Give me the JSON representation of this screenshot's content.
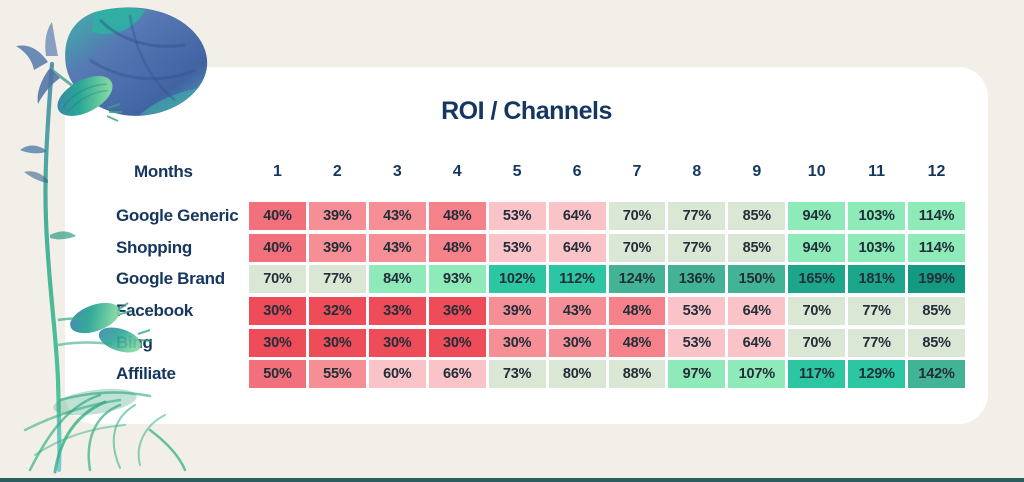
{
  "title": "ROI / Channels",
  "colors": {
    "background": "#f2efe8",
    "card": "#ffffff",
    "heading_navy": "#14365f",
    "cell_text": "#222e38",
    "bottom_bar": "#2b5d60",
    "scale_strong_red": "#ee4c58",
    "scale_salmon": "#f2707b",
    "scale_light_salmon": "#f68e96",
    "scale_mid_salmon": "#f5828b",
    "scale_light_pink": "#f9c3c8",
    "scale_sage_green": "#d9e7d4",
    "scale_mint_green": "#8eeab9",
    "scale_bright_teal": "#2cc6a2",
    "scale_mid_teal": "#43b395",
    "scale_dark_teal": "#1da78a",
    "scale_darkest_teal": "#149a80"
  },
  "chart_data": {
    "type": "heatmap",
    "title": "ROI / Channels",
    "row_header": "Months",
    "columns": [
      "1",
      "2",
      "3",
      "4",
      "5",
      "6",
      "7",
      "8",
      "9",
      "10",
      "11",
      "12"
    ],
    "rows": [
      {
        "label": "Google Generic",
        "values": [
          40,
          39,
          43,
          48,
          53,
          64,
          70,
          77,
          85,
          94,
          103,
          114
        ],
        "cells": [
          {
            "text": "40%",
            "bg": "#f2707b"
          },
          {
            "text": "39%",
            "bg": "#f68e96"
          },
          {
            "text": "43%",
            "bg": "#f68e96"
          },
          {
            "text": "48%",
            "bg": "#f5828b"
          },
          {
            "text": "53%",
            "bg": "#f9c3c8"
          },
          {
            "text": "64%",
            "bg": "#f9c3c8"
          },
          {
            "text": "70%",
            "bg": "#d9e7d4"
          },
          {
            "text": "77%",
            "bg": "#d9e7d4"
          },
          {
            "text": "85%",
            "bg": "#d9e7d4"
          },
          {
            "text": "94%",
            "bg": "#8eeab9"
          },
          {
            "text": "103%",
            "bg": "#8eeab9"
          },
          {
            "text": "114%",
            "bg": "#8eeab9"
          }
        ]
      },
      {
        "label": "Shopping",
        "values": [
          40,
          39,
          43,
          48,
          53,
          64,
          70,
          77,
          85,
          94,
          103,
          114
        ],
        "cells": [
          {
            "text": "40%",
            "bg": "#f2707b"
          },
          {
            "text": "39%",
            "bg": "#f68e96"
          },
          {
            "text": "43%",
            "bg": "#f68e96"
          },
          {
            "text": "48%",
            "bg": "#f5828b"
          },
          {
            "text": "53%",
            "bg": "#f9c3c8"
          },
          {
            "text": "64%",
            "bg": "#f9c3c8"
          },
          {
            "text": "70%",
            "bg": "#d9e7d4"
          },
          {
            "text": "77%",
            "bg": "#d9e7d4"
          },
          {
            "text": "85%",
            "bg": "#d9e7d4"
          },
          {
            "text": "94%",
            "bg": "#8eeab9"
          },
          {
            "text": "103%",
            "bg": "#8eeab9"
          },
          {
            "text": "114%",
            "bg": "#8eeab9"
          }
        ]
      },
      {
        "label": "Google Brand",
        "values": [
          70,
          77,
          84,
          93,
          102,
          112,
          124,
          136,
          150,
          165,
          181,
          199
        ],
        "cells": [
          {
            "text": "70%",
            "bg": "#d9e7d4"
          },
          {
            "text": "77%",
            "bg": "#d9e7d4"
          },
          {
            "text": "84%",
            "bg": "#8eeab9"
          },
          {
            "text": "93%",
            "bg": "#8eeab9"
          },
          {
            "text": "102%",
            "bg": "#2cc6a2"
          },
          {
            "text": "112%",
            "bg": "#2cc6a2"
          },
          {
            "text": "124%",
            "bg": "#43b395"
          },
          {
            "text": "136%",
            "bg": "#43b395"
          },
          {
            "text": "150%",
            "bg": "#43b395"
          },
          {
            "text": "165%",
            "bg": "#1da78a"
          },
          {
            "text": "181%",
            "bg": "#1da78a"
          },
          {
            "text": "199%",
            "bg": "#149a80"
          }
        ]
      },
      {
        "label": "Facebook",
        "values": [
          30,
          32,
          33,
          36,
          39,
          43,
          48,
          53,
          64,
          70,
          77,
          85
        ],
        "cells": [
          {
            "text": "30%",
            "bg": "#ee4c58"
          },
          {
            "text": "32%",
            "bg": "#ee4c58"
          },
          {
            "text": "33%",
            "bg": "#ee4c58"
          },
          {
            "text": "36%",
            "bg": "#ee4c58"
          },
          {
            "text": "39%",
            "bg": "#f68e96"
          },
          {
            "text": "43%",
            "bg": "#f68e96"
          },
          {
            "text": "48%",
            "bg": "#f5828b"
          },
          {
            "text": "53%",
            "bg": "#f9c3c8"
          },
          {
            "text": "64%",
            "bg": "#f9c3c8"
          },
          {
            "text": "70%",
            "bg": "#d9e7d4"
          },
          {
            "text": "77%",
            "bg": "#d9e7d4"
          },
          {
            "text": "85%",
            "bg": "#d9e7d4"
          }
        ]
      },
      {
        "label": "Bing",
        "values": [
          30,
          30,
          30,
          30,
          30,
          30,
          48,
          53,
          64,
          70,
          77,
          85
        ],
        "cells": [
          {
            "text": "30%",
            "bg": "#ee4c58"
          },
          {
            "text": "30%",
            "bg": "#ee4c58"
          },
          {
            "text": "30%",
            "bg": "#ee4c58"
          },
          {
            "text": "30%",
            "bg": "#ee4c58"
          },
          {
            "text": "30%",
            "bg": "#f68e96"
          },
          {
            "text": "30%",
            "bg": "#f68e96"
          },
          {
            "text": "48%",
            "bg": "#f5828b"
          },
          {
            "text": "53%",
            "bg": "#f9c3c8"
          },
          {
            "text": "64%",
            "bg": "#f9c3c8"
          },
          {
            "text": "70%",
            "bg": "#d9e7d4"
          },
          {
            "text": "77%",
            "bg": "#d9e7d4"
          },
          {
            "text": "85%",
            "bg": "#d9e7d4"
          }
        ]
      },
      {
        "label": "Affiliate",
        "values": [
          50,
          55,
          60,
          66,
          73,
          80,
          88,
          97,
          107,
          117,
          129,
          142
        ],
        "cells": [
          {
            "text": "50%",
            "bg": "#f2707b"
          },
          {
            "text": "55%",
            "bg": "#f68e96"
          },
          {
            "text": "60%",
            "bg": "#f9c3c8"
          },
          {
            "text": "66%",
            "bg": "#f9c3c8"
          },
          {
            "text": "73%",
            "bg": "#d9e7d4"
          },
          {
            "text": "80%",
            "bg": "#d9e7d4"
          },
          {
            "text": "88%",
            "bg": "#d9e7d4"
          },
          {
            "text": "97%",
            "bg": "#8eeab9"
          },
          {
            "text": "107%",
            "bg": "#8eeab9"
          },
          {
            "text": "117%",
            "bg": "#2cc6a2"
          },
          {
            "text": "129%",
            "bg": "#2cc6a2"
          },
          {
            "text": "142%",
            "bg": "#43b395"
          }
        ]
      }
    ]
  }
}
